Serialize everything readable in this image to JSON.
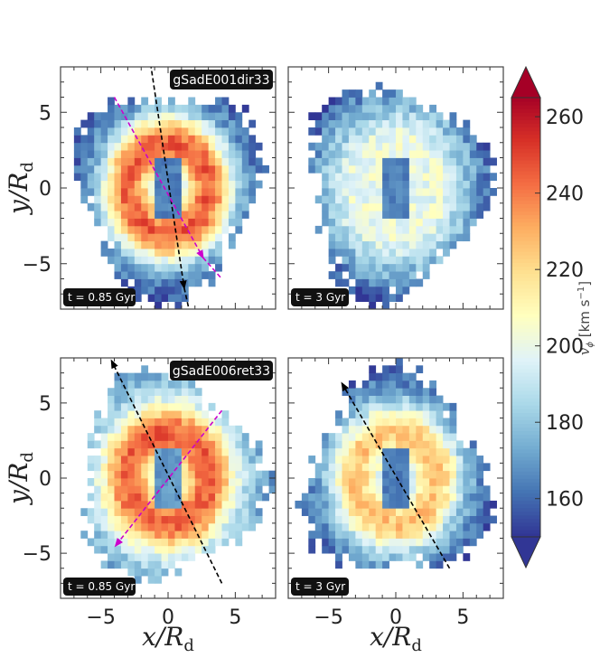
{
  "chart_data": [
    {
      "type": "heatmap",
      "panel": "top-left",
      "label": "gSadE001dir33",
      "time": "t = 0.85 Gyr",
      "time_value": 0.85,
      "xlim": [
        -8,
        8
      ],
      "ylim": [
        -8,
        8
      ],
      "inner_hole_vphi": 160,
      "ring_vphi": 245,
      "outer_vphi": 180,
      "ring_shape": "ring",
      "arrows": [
        {
          "color": "#000000",
          "from": [
            -1.3,
            8.2
          ],
          "to": [
            1.2,
            -6.6
          ],
          "extends_to": [
            1.6,
            -8.2
          ]
        },
        {
          "color": "#cc00cc",
          "from": [
            -4.0,
            6.0
          ],
          "to": [
            2.6,
            -4.6
          ],
          "extends_to": [
            4.0,
            -6.0
          ]
        }
      ]
    },
    {
      "type": "heatmap",
      "panel": "top-right",
      "time": "t = 3 Gyr",
      "time_value": 3,
      "xlim": [
        -8,
        8
      ],
      "ylim": [
        -8,
        8
      ],
      "inner_hole_vphi": 160,
      "ring_vphi": 200,
      "outer_vphi": 185,
      "ring_shape": "diffuse",
      "arrows": []
    },
    {
      "type": "heatmap",
      "panel": "bottom-left",
      "label": "gSadE006ret33",
      "time": "t = 0.85 Gyr",
      "time_value": 0.85,
      "xlim": [
        -8,
        8
      ],
      "ylim": [
        -8,
        8
      ],
      "inner_hole_vphi": 165,
      "ring_vphi": 245,
      "outer_vphi": 195,
      "ring_shape": "ring",
      "arrows": [
        {
          "color": "#000000",
          "from": [
            4.0,
            -7.0
          ],
          "to": [
            -4.2,
            7.8
          ]
        },
        {
          "color": "#cc00cc",
          "from": [
            4.0,
            4.5
          ],
          "to": [
            -3.9,
            -4.5
          ]
        }
      ]
    },
    {
      "type": "heatmap",
      "panel": "bottom-right",
      "time": "t = 3 Gyr",
      "time_value": 3,
      "xlim": [
        -8,
        8
      ],
      "ylim": [
        -8,
        8
      ],
      "inner_hole_vphi": 160,
      "ring_vphi": 225,
      "outer_vphi": 180,
      "ring_shape": "ring",
      "arrows": [
        {
          "color": "#000000",
          "from": [
            4.0,
            -6.0
          ],
          "to": [
            -4.0,
            6.3
          ]
        }
      ]
    }
  ],
  "axes": {
    "xlabel": "x/R",
    "xlabel_sub": "d",
    "ylabel": "y/R",
    "ylabel_sub": "d",
    "ticks": [
      -5,
      0,
      5
    ],
    "tick_labels": [
      "−5",
      "0",
      "5"
    ]
  },
  "colorbar": {
    "label": "v",
    "label_sub": "ϕ",
    "units": "[km s",
    "units_exp": "−1",
    "units_close": "]",
    "min": 150,
    "max": 265,
    "ticks": [
      160,
      180,
      200,
      220,
      240,
      260
    ],
    "tick_labels": [
      "160",
      "180",
      "200",
      "220",
      "240",
      "260"
    ],
    "colormap": "RdYlBu_r"
  }
}
